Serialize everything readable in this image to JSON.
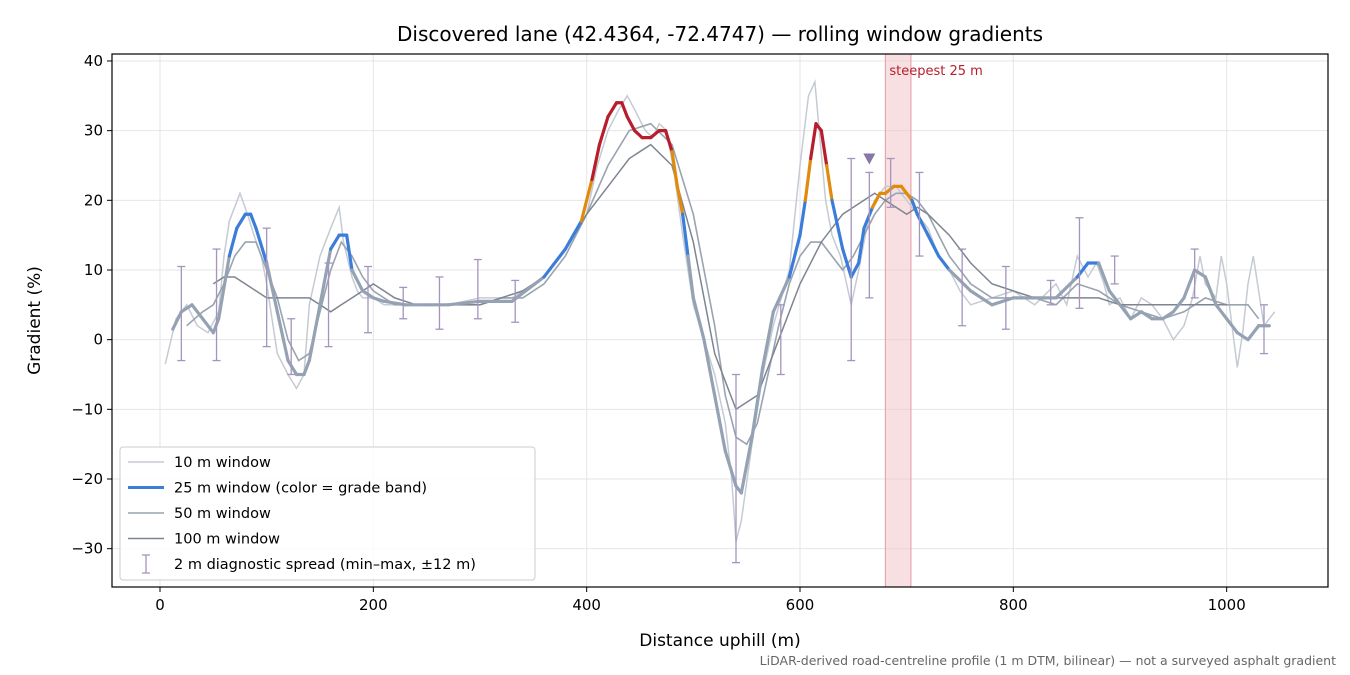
{
  "chart_data": {
    "type": "line",
    "title": "Discovered lane (42.4364, -72.4747) — rolling window gradients",
    "xlabel": "Distance uphill (m)",
    "ylabel": "Gradient (%)",
    "xlim": [
      -45,
      1095
    ],
    "ylim": [
      -35.5,
      41
    ],
    "xticks": [
      0,
      200,
      400,
      600,
      800,
      1000
    ],
    "yticks": [
      -30,
      -20,
      -10,
      0,
      10,
      20,
      30,
      40
    ],
    "yticks_labels": [
      "−30",
      "−20",
      "−10",
      "0",
      "10",
      "20",
      "30",
      "40"
    ],
    "grid": true,
    "legend_position": "lower-left",
    "footnote": "LiDAR-derived road-centreline profile (1 m DTM, bilinear) — not a surveyed asphalt gradient",
    "colors": {
      "w10": "#c5cbd3",
      "w50": "#9aa3b0",
      "w100": "#7d8592",
      "band_low": "#3b7dd8",
      "band_mid": "#e08b0b",
      "band_high": "#b81d2c",
      "neutral25": "#95a2b3",
      "errorbar": "#a594bd",
      "marker": "#8a75a8",
      "highlight": "#f3c6cb",
      "annotation": "#b81d2c"
    },
    "highlight": {
      "x_start": 680,
      "x_end": 704,
      "label": "steepest 25 m"
    },
    "marker": {
      "x": 665,
      "y": 26
    },
    "series": [
      {
        "name": "10 m window",
        "x": [
          5,
          15,
          25,
          35,
          45,
          55,
          60,
          65,
          75,
          82,
          88,
          95,
          100,
          110,
          120,
          128,
          135,
          140,
          150,
          160,
          168,
          172,
          180,
          185,
          190,
          200,
          210,
          230,
          250,
          270,
          300,
          330,
          360,
          380,
          400,
          410,
          420,
          430,
          438,
          445,
          455,
          462,
          468,
          475,
          482,
          490,
          495,
          500,
          510,
          520,
          530,
          536,
          540,
          545,
          555,
          565,
          575,
          590,
          600,
          608,
          614,
          618,
          624,
          630,
          638,
          648,
          655,
          665,
          670,
          680,
          690,
          700,
          710,
          720,
          730,
          740,
          750,
          760,
          780,
          800,
          820,
          840,
          850,
          860,
          870,
          878,
          885,
          890,
          900,
          910,
          920,
          930,
          940,
          950,
          960,
          968,
          975,
          980,
          990,
          995,
          1000,
          1005,
          1010,
          1015,
          1020,
          1025,
          1035,
          1045
        ],
        "y": [
          -3.5,
          3,
          5,
          2,
          1,
          4,
          12,
          17,
          21,
          18,
          15,
          12,
          8,
          -2,
          -5,
          -7,
          -5,
          5,
          12,
          16,
          19,
          14,
          9,
          7,
          6,
          6,
          5,
          5,
          5,
          5,
          6,
          6,
          9,
          13,
          18,
          25,
          30,
          33,
          35,
          33,
          30,
          29,
          31,
          30,
          24,
          15,
          10,
          5,
          0,
          -5,
          -12,
          -20,
          -29,
          -26,
          -15,
          -5,
          2,
          10,
          25,
          35,
          37,
          30,
          20,
          15,
          12,
          5,
          10,
          18,
          20,
          22,
          22,
          20,
          18,
          16,
          12,
          10,
          7,
          5,
          6,
          7,
          5,
          8,
          5,
          12,
          9,
          11,
          8,
          5,
          6,
          3,
          6,
          5,
          3,
          0,
          2,
          6,
          12,
          8,
          6,
          12,
          8,
          2,
          -4,
          1,
          8,
          12,
          2,
          4
        ]
      },
      {
        "name": "50 m window",
        "x": [
          25,
          40,
          50,
          60,
          70,
          80,
          90,
          100,
          110,
          120,
          130,
          140,
          150,
          160,
          170,
          180,
          190,
          200,
          220,
          240,
          260,
          280,
          300,
          320,
          340,
          360,
          380,
          400,
          420,
          440,
          460,
          480,
          500,
          520,
          530,
          540,
          550,
          560,
          570,
          580,
          590,
          600,
          610,
          620,
          630,
          640,
          650,
          660,
          670,
          680,
          690,
          700,
          710,
          720,
          740,
          760,
          780,
          800,
          820,
          840,
          860,
          880,
          900,
          920,
          940,
          960,
          980,
          1000,
          1020,
          1030
        ],
        "y": [
          2,
          4,
          5,
          8,
          12,
          14,
          14,
          10,
          6,
          0,
          -3,
          -2,
          4,
          10,
          14,
          12,
          9,
          7,
          5,
          5,
          5,
          5,
          5,
          6,
          6,
          8,
          12,
          18,
          25,
          30,
          31,
          28,
          18,
          2,
          -8,
          -14,
          -15,
          -12,
          -5,
          2,
          8,
          12,
          14,
          14,
          12,
          10,
          12,
          15,
          18,
          20,
          21,
          21,
          20,
          18,
          12,
          8,
          6,
          6,
          6,
          5,
          8,
          7,
          5,
          4,
          3,
          4,
          6,
          5,
          5,
          3
        ]
      },
      {
        "name": "100 m window",
        "x": [
          50,
          60,
          70,
          80,
          90,
          100,
          110,
          120,
          130,
          140,
          150,
          160,
          170,
          180,
          190,
          200,
          210,
          220,
          240,
          260,
          280,
          300,
          320,
          340,
          360,
          380,
          400,
          420,
          440,
          460,
          480,
          500,
          520,
          540,
          560,
          580,
          600,
          620,
          640,
          660,
          670,
          680,
          690,
          700,
          710,
          720,
          740,
          760,
          780,
          800,
          820,
          840,
          860,
          880,
          900,
          920,
          940,
          960,
          980,
          1000
        ],
        "y": [
          8,
          9,
          9,
          8,
          7,
          6,
          6,
          6,
          6,
          6,
          5,
          4,
          5,
          6,
          7,
          8,
          7,
          6,
          5,
          5,
          5,
          5,
          6,
          7,
          9,
          13,
          18,
          22,
          26,
          28,
          25,
          14,
          -2,
          -10,
          -8,
          0,
          8,
          14,
          18,
          20,
          21,
          20,
          19,
          18,
          19,
          18,
          15,
          11,
          8,
          7,
          6,
          6,
          6,
          6,
          5,
          5,
          5,
          5,
          5,
          5
        ]
      },
      {
        "name": "25 m window (color = grade band)",
        "x": [
          12,
          20,
          30,
          40,
          50,
          55,
          65,
          72,
          80,
          85,
          90,
          100,
          110,
          120,
          128,
          135,
          140,
          150,
          160,
          168,
          175,
          180,
          190,
          200,
          210,
          230,
          250,
          270,
          300,
          330,
          360,
          380,
          395,
          405,
          412,
          420,
          428,
          433,
          438,
          445,
          452,
          460,
          468,
          474,
          480,
          485,
          490,
          495,
          500,
          510,
          520,
          530,
          540,
          545,
          555,
          565,
          575,
          590,
          600,
          605,
          610,
          615,
          620,
          625,
          630,
          640,
          648,
          655,
          660,
          668,
          675,
          680,
          688,
          695,
          700,
          705,
          710,
          720,
          730,
          740,
          760,
          780,
          800,
          820,
          840,
          860,
          870,
          880,
          890,
          900,
          910,
          920,
          930,
          940,
          950,
          960,
          970,
          980,
          990,
          1000,
          1010,
          1020,
          1030,
          1040
        ],
        "y": [
          1.5,
          4,
          5,
          3,
          1,
          3,
          12,
          16,
          18,
          18,
          16,
          11,
          4,
          -3,
          -5,
          -5,
          -3,
          5,
          13,
          15,
          15,
          10,
          7,
          6,
          5.5,
          5,
          5,
          5,
          5.5,
          5.5,
          9,
          13,
          17,
          23,
          28,
          32,
          34,
          34,
          32,
          30,
          29,
          29,
          30,
          30,
          27,
          22,
          18,
          12,
          6,
          0,
          -8,
          -16,
          -21,
          -22,
          -14,
          -4,
          4,
          9,
          15,
          20,
          26,
          31,
          30,
          25,
          20,
          13,
          9,
          11,
          16,
          19,
          21,
          21,
          22,
          22,
          21,
          20,
          18,
          15,
          12,
          10,
          7,
          5,
          6,
          6,
          6,
          9,
          11,
          11,
          7,
          5,
          3,
          4,
          3,
          3,
          4,
          6,
          10,
          9,
          5,
          3,
          1,
          0,
          2,
          2
        ]
      },
      {
        "name": "2 m diagnostic spread (min–max, ±12 m)",
        "x": [
          20,
          53,
          100,
          123,
          158,
          195,
          228,
          262,
          298,
          333,
          540,
          582,
          648,
          665,
          685,
          712,
          752,
          793,
          835,
          862,
          895,
          970,
          1035
        ],
        "low": [
          -3,
          -3,
          -1,
          -5,
          -1,
          1,
          3,
          1.5,
          3,
          2.5,
          -32,
          -5,
          -3,
          6,
          19,
          12,
          2,
          1.5,
          5,
          4.5,
          8,
          6,
          -2
        ],
        "high": [
          10.5,
          13,
          16,
          3,
          11,
          10.5,
          7.5,
          9,
          11.5,
          8.5,
          -5,
          5,
          26,
          24,
          26,
          24,
          13,
          10.5,
          8.5,
          17.5,
          12,
          13,
          5
        ]
      }
    ]
  }
}
